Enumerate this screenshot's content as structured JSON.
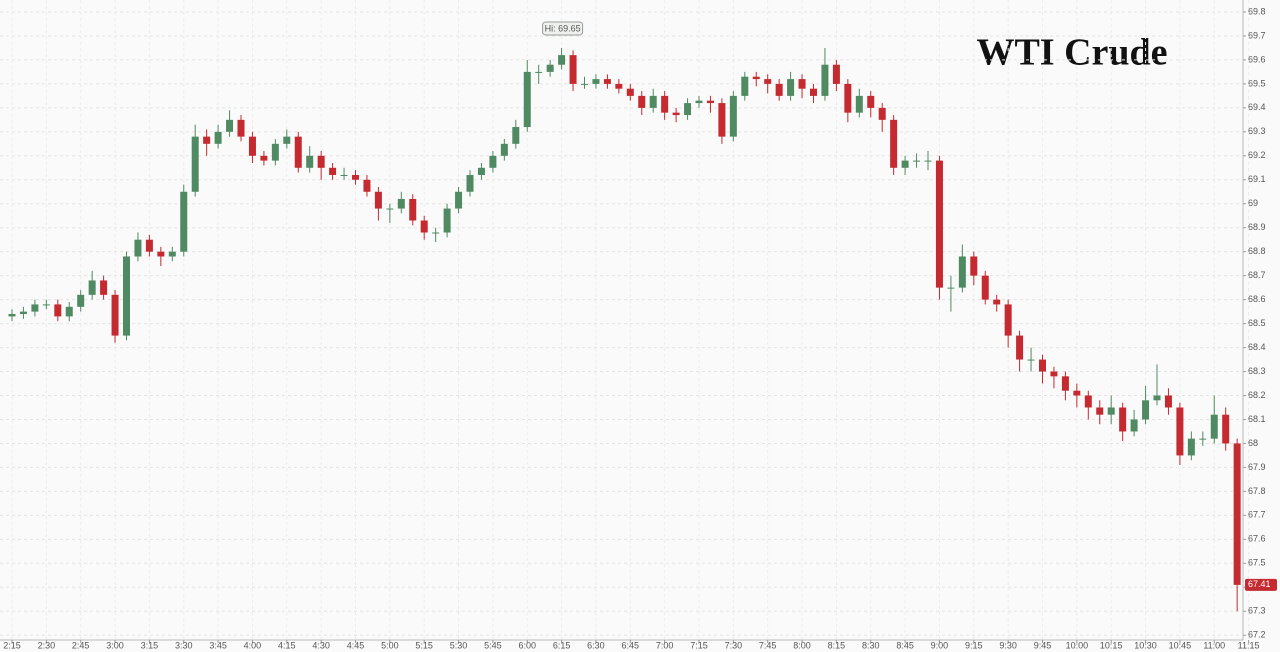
{
  "chart_data": {
    "type": "candlestick",
    "title": "WTI Crude",
    "annotation": "Hi: 69.65",
    "up_color": "#4f8a62",
    "down_color": "#c42a2f",
    "grid": true,
    "ylim": [
      67.18,
      69.85
    ],
    "yticks": [
      67.2,
      67.3,
      67.4,
      67.5,
      67.6,
      67.7,
      67.8,
      67.9,
      68,
      68.1,
      68.2,
      68.3,
      68.4,
      68.5,
      68.6,
      68.7,
      68.8,
      68.9,
      69,
      69.1,
      69.2,
      69.3,
      69.4,
      69.5,
      69.6,
      69.7,
      69.8
    ],
    "categories": [
      "2:15",
      null,
      null,
      "2:30",
      null,
      null,
      "2:45",
      null,
      null,
      "3:00",
      null,
      null,
      "3:15",
      null,
      null,
      "3:30",
      null,
      null,
      "3:45",
      null,
      null,
      "4:00",
      null,
      null,
      "4:15",
      null,
      null,
      "4:30",
      null,
      null,
      "4:45",
      null,
      null,
      "5:00",
      null,
      null,
      "5:15",
      null,
      null,
      "5:30",
      null,
      null,
      "5:45",
      null,
      null,
      "6:00",
      null,
      null,
      "6:15",
      null,
      null,
      "6:30",
      null,
      null,
      "6:45",
      null,
      null,
      "7:00",
      null,
      null,
      "7:15",
      null,
      null,
      "7:30",
      null,
      null,
      "7:45",
      null,
      null,
      "8:00",
      null,
      null,
      "8:15",
      null,
      null,
      "8:30",
      null,
      null,
      "8:45",
      null,
      null,
      "9:00",
      null,
      null,
      "9:15",
      null,
      null,
      "9:30",
      null,
      null,
      "9:45",
      null,
      null,
      "10:00",
      null,
      null,
      "10:15",
      null,
      null,
      "10:30",
      null,
      null,
      "10:45",
      null,
      null,
      "11:00",
      null,
      null,
      "11:15"
    ],
    "open": [
      68.53,
      68.54,
      68.55,
      68.58,
      68.58,
      68.53,
      68.57,
      68.62,
      68.68,
      68.62,
      68.45,
      68.78,
      68.85,
      68.8,
      68.78,
      68.8,
      69.05,
      69.28,
      69.25,
      69.3,
      69.35,
      69.28,
      69.2,
      69.18,
      69.25,
      69.28,
      69.15,
      69.2,
      69.15,
      69.12,
      69.12,
      69.1,
      69.05,
      68.98,
      68.98,
      69.02,
      68.93,
      68.88,
      68.88,
      68.98,
      69.05,
      69.12,
      69.15,
      69.2,
      69.25,
      69.32,
      69.55,
      69.55,
      69.58,
      69.62,
      69.5,
      69.5,
      69.52,
      69.5,
      69.48,
      69.45,
      69.4,
      69.45,
      69.38,
      69.37,
      69.42,
      69.43,
      69.42,
      69.28,
      69.45,
      69.53,
      69.52,
      69.5,
      69.45,
      69.52,
      69.48,
      69.45,
      69.58,
      69.5,
      69.38,
      69.45,
      69.4,
      69.35,
      69.15,
      69.18,
      69.18,
      69.18,
      68.65,
      68.65,
      68.78,
      68.7,
      68.6,
      68.58,
      68.45,
      68.35,
      68.35,
      68.3,
      68.28,
      68.22,
      68.2,
      68.15,
      68.12,
      68.15,
      68.05,
      68.1,
      68.18,
      68.2,
      68.15,
      67.95,
      68.02,
      68.02,
      68.12,
      68.0,
      null
    ],
    "high": [
      68.56,
      68.57,
      68.6,
      68.6,
      68.6,
      68.59,
      68.64,
      68.72,
      68.7,
      68.64,
      68.8,
      68.88,
      68.87,
      68.82,
      68.82,
      69.08,
      69.33,
      69.31,
      69.33,
      69.39,
      69.37,
      69.3,
      69.22,
      69.27,
      69.31,
      69.3,
      69.24,
      69.22,
      69.17,
      69.15,
      69.14,
      69.12,
      69.07,
      69.0,
      69.05,
      69.04,
      68.95,
      68.9,
      69.0,
      69.07,
      69.14,
      69.17,
      69.22,
      69.27,
      69.35,
      69.6,
      69.58,
      69.6,
      69.65,
      69.64,
      69.53,
      69.54,
      69.54,
      69.52,
      69.5,
      69.47,
      69.48,
      69.47,
      69.4,
      69.44,
      69.45,
      69.45,
      69.44,
      69.47,
      69.55,
      69.55,
      69.54,
      69.52,
      69.55,
      69.54,
      69.5,
      69.65,
      69.6,
      69.52,
      69.48,
      69.47,
      69.42,
      69.37,
      69.2,
      69.21,
      69.22,
      69.2,
      68.7,
      68.83,
      68.8,
      68.72,
      68.62,
      68.6,
      68.47,
      68.4,
      68.37,
      68.32,
      68.3,
      68.25,
      68.22,
      68.18,
      68.2,
      68.17,
      68.14,
      68.24,
      68.33,
      68.23,
      68.17,
      68.05,
      68.05,
      68.2,
      68.15,
      68.02,
      null
    ],
    "low": [
      68.51,
      68.52,
      68.53,
      68.56,
      68.51,
      68.51,
      68.55,
      68.6,
      68.6,
      68.42,
      68.43,
      68.76,
      68.78,
      68.74,
      68.76,
      68.78,
      69.03,
      69.2,
      69.23,
      69.28,
      69.26,
      69.17,
      69.16,
      69.16,
      69.23,
      69.13,
      69.13,
      69.1,
      69.1,
      69.1,
      69.08,
      69.03,
      68.93,
      68.92,
      68.96,
      68.91,
      68.85,
      68.84,
      68.86,
      68.96,
      69.03,
      69.1,
      69.13,
      69.18,
      69.23,
      69.3,
      69.5,
      69.53,
      69.56,
      69.47,
      69.48,
      69.48,
      69.48,
      69.46,
      69.43,
      69.37,
      69.38,
      69.35,
      69.34,
      69.35,
      69.4,
      69.38,
      69.25,
      69.26,
      69.43,
      69.49,
      69.46,
      69.43,
      69.43,
      69.44,
      69.42,
      69.43,
      69.47,
      69.34,
      69.36,
      69.36,
      69.3,
      69.12,
      69.12,
      69.15,
      69.14,
      68.6,
      68.55,
      68.63,
      68.66,
      68.58,
      68.55,
      68.4,
      68.3,
      68.3,
      68.25,
      68.23,
      68.18,
      68.15,
      68.1,
      68.08,
      68.08,
      68.01,
      68.03,
      68.08,
      68.16,
      68.12,
      67.91,
      67.93,
      67.99,
      68.0,
      67.97,
      67.3,
      null
    ],
    "close": [
      68.54,
      68.55,
      68.58,
      68.58,
      68.53,
      68.57,
      68.62,
      68.68,
      68.62,
      68.45,
      68.78,
      68.85,
      68.8,
      68.78,
      68.8,
      69.05,
      69.28,
      69.25,
      69.3,
      69.35,
      69.28,
      69.2,
      69.18,
      69.25,
      69.28,
      69.15,
      69.2,
      69.15,
      69.12,
      69.12,
      69.1,
      69.05,
      68.98,
      68.98,
      69.02,
      68.93,
      68.88,
      68.88,
      68.98,
      69.05,
      69.12,
      69.15,
      69.2,
      69.25,
      69.32,
      69.55,
      69.55,
      69.58,
      69.62,
      69.5,
      69.5,
      69.52,
      69.5,
      69.48,
      69.45,
      69.4,
      69.45,
      69.38,
      69.37,
      69.42,
      69.43,
      69.42,
      69.28,
      69.45,
      69.53,
      69.52,
      69.5,
      69.45,
      69.52,
      69.48,
      69.45,
      69.58,
      69.5,
      69.38,
      69.45,
      69.4,
      69.35,
      69.15,
      69.18,
      69.18,
      69.18,
      68.65,
      68.65,
      68.78,
      68.7,
      68.6,
      68.58,
      68.45,
      68.35,
      68.35,
      68.3,
      68.28,
      68.22,
      68.2,
      68.15,
      68.12,
      68.15,
      68.05,
      68.1,
      68.18,
      68.2,
      68.15,
      67.95,
      68.02,
      68.02,
      68.12,
      68.0,
      67.41,
      null
    ]
  }
}
